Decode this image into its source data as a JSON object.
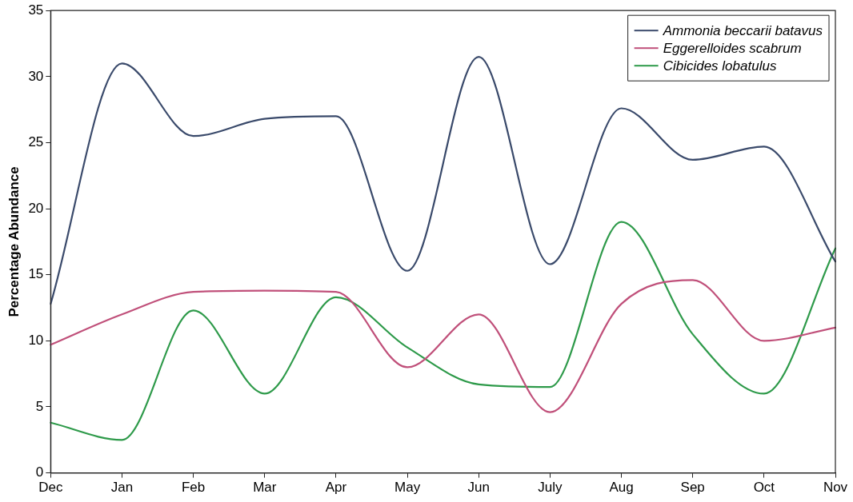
{
  "chart_data": {
    "type": "line",
    "ylabel": "Percentage Abundance",
    "categories": [
      "Dec",
      "Jan",
      "Feb",
      "Mar",
      "Apr",
      "May",
      "Jun",
      "July",
      "Aug",
      "Sep",
      "Oct",
      "Nov"
    ],
    "series": [
      {
        "name": "Ammonia beccarii batavus",
        "color": "#3a4a6b",
        "values": [
          12.8,
          31,
          25.5,
          26.8,
          27,
          15.3,
          31.5,
          15.8,
          27.6,
          23.7,
          24.7,
          16
        ]
      },
      {
        "name": "Eggerelloides scabrum",
        "color": "#c0507a",
        "values": [
          9.7,
          12,
          13.7,
          13.8,
          13.7,
          8,
          12,
          4.6,
          12.8,
          14.6,
          10,
          11
        ]
      },
      {
        "name": "Cibicides lobatulus",
        "color": "#2e9a4a",
        "values": [
          3.8,
          2.5,
          12.3,
          6,
          13.3,
          9.5,
          6.7,
          6.5,
          19,
          10.5,
          6,
          17
        ]
      }
    ],
    "ylim": [
      0,
      35
    ],
    "yticks": [
      0,
      5,
      10,
      15,
      20,
      25,
      30,
      35
    ],
    "grid": false,
    "legend": "top right",
    "marker": "none",
    "line_style": "solid"
  }
}
